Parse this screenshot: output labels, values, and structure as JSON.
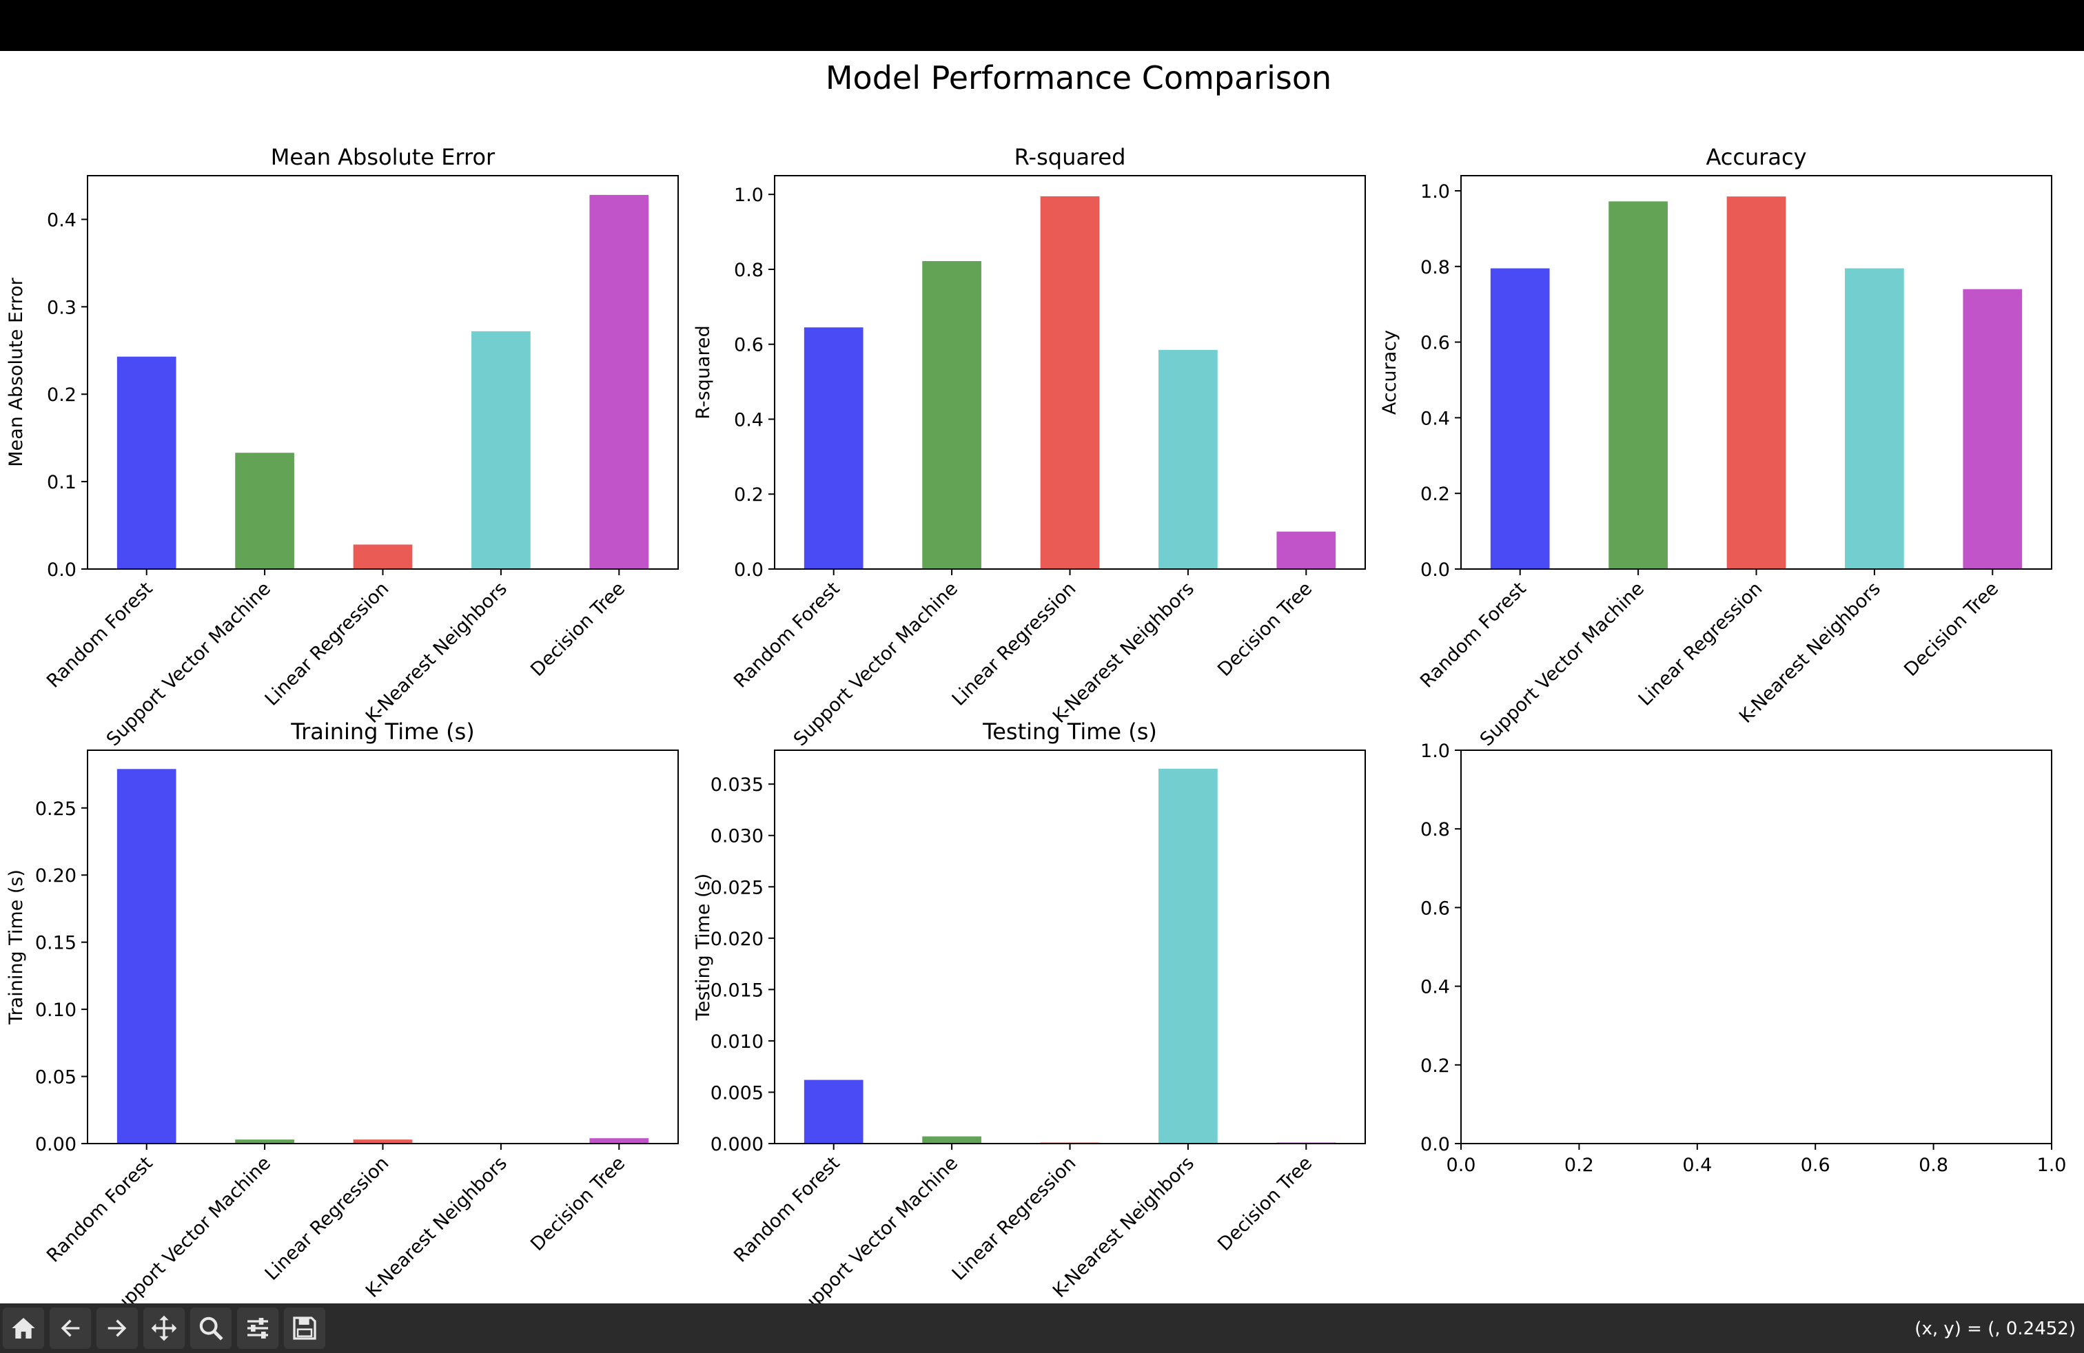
{
  "figure": {
    "suptitle": "Model Performance Comparison"
  },
  "chart_data": [
    {
      "type": "bar",
      "title": "Mean Absolute Error",
      "xlabel": "",
      "ylabel": "Mean Absolute Error",
      "categories": [
        "Random Forest",
        "Support Vector Machine",
        "Linear Regression",
        "K-Nearest Neighbors",
        "Decision Tree"
      ],
      "values": [
        0.243,
        0.133,
        0.028,
        0.272,
        0.428
      ],
      "ylim": [
        0,
        0.45
      ],
      "yticks": [
        "0.0",
        "0.1",
        "0.2",
        "0.3",
        "0.4"
      ],
      "colors": [
        "#4b4bf5",
        "#63a355",
        "#ea5b56",
        "#73cfcf",
        "#c054c8"
      ]
    },
    {
      "type": "bar",
      "title": "R-squared",
      "xlabel": "",
      "ylabel": "R-squared",
      "categories": [
        "Random Forest",
        "Support Vector Machine",
        "Linear Regression",
        "K-Nearest Neighbors",
        "Decision Tree"
      ],
      "values": [
        0.645,
        0.822,
        0.995,
        0.585,
        0.1
      ],
      "ylim": [
        0,
        1.05
      ],
      "yticks": [
        "0.0",
        "0.2",
        "0.4",
        "0.6",
        "0.8",
        "1.0"
      ],
      "colors": [
        "#4b4bf5",
        "#63a355",
        "#ea5b56",
        "#73cfcf",
        "#c054c8"
      ]
    },
    {
      "type": "bar",
      "title": "Accuracy",
      "xlabel": "",
      "ylabel": "Accuracy",
      "categories": [
        "Random Forest",
        "Support Vector Machine",
        "Linear Regression",
        "K-Nearest Neighbors",
        "Decision Tree"
      ],
      "values": [
        0.795,
        0.972,
        0.985,
        0.795,
        0.74
      ],
      "ylim": [
        0,
        1.04
      ],
      "yticks": [
        "0.0",
        "0.2",
        "0.4",
        "0.6",
        "0.8",
        "1.0"
      ],
      "colors": [
        "#4b4bf5",
        "#63a355",
        "#ea5b56",
        "#73cfcf",
        "#c054c8"
      ]
    },
    {
      "type": "bar",
      "title": "Training Time (s)",
      "xlabel": "",
      "ylabel": "Training Time (s)",
      "categories": [
        "Random Forest",
        "Support Vector Machine",
        "Linear Regression",
        "K-Nearest Neighbors",
        "Decision Tree"
      ],
      "values": [
        0.279,
        0.003,
        0.003,
        0.0002,
        0.004
      ],
      "ylim": [
        0,
        0.293
      ],
      "yticks": [
        "0.00",
        "0.05",
        "0.10",
        "0.15",
        "0.20",
        "0.25"
      ],
      "colors": [
        "#4b4bf5",
        "#63a355",
        "#ea5b56",
        "#73cfcf",
        "#c054c8"
      ]
    },
    {
      "type": "bar",
      "title": "Testing Time (s)",
      "xlabel": "",
      "ylabel": "Testing Time (s)",
      "categories": [
        "Random Forest",
        "Support Vector Machine",
        "Linear Regression",
        "K-Nearest Neighbors",
        "Decision Tree"
      ],
      "values": [
        0.0062,
        0.0007,
        0.0001,
        0.0365,
        0.0001
      ],
      "ylim": [
        0,
        0.0383
      ],
      "yticks": [
        "0.000",
        "0.005",
        "0.010",
        "0.015",
        "0.020",
        "0.025",
        "0.030",
        "0.035"
      ],
      "colors": [
        "#4b4bf5",
        "#63a355",
        "#ea5b56",
        "#73cfcf",
        "#c054c8"
      ]
    },
    {
      "type": "empty",
      "title": "",
      "xlabel": "",
      "ylabel": "",
      "categories": [],
      "values": [],
      "xlim": [
        0,
        1
      ],
      "ylim": [
        0,
        1
      ],
      "xticks": [
        "0.0",
        "0.2",
        "0.4",
        "0.6",
        "0.8",
        "1.0"
      ],
      "yticks": [
        "0.0",
        "0.2",
        "0.4",
        "0.6",
        "0.8",
        "1.0"
      ]
    }
  ],
  "toolbar": {
    "buttons": [
      {
        "name": "home-button",
        "icon": "home-icon"
      },
      {
        "name": "back-button",
        "icon": "arrow-left-icon"
      },
      {
        "name": "forward-button",
        "icon": "arrow-right-icon"
      },
      {
        "name": "pan-button",
        "icon": "move-icon"
      },
      {
        "name": "zoom-button",
        "icon": "zoom-icon"
      },
      {
        "name": "configure-subplots-button",
        "icon": "sliders-icon"
      },
      {
        "name": "save-button",
        "icon": "save-icon"
      }
    ],
    "coords": "(x, y) = (, 0.2452)"
  }
}
